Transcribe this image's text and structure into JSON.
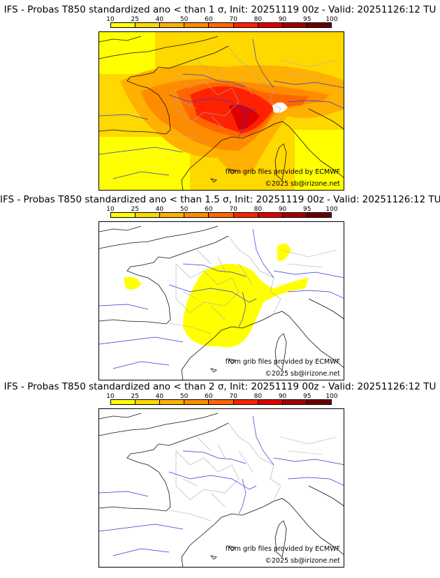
{
  "panels": [
    {
      "title": "IFS - Probas T850  standardized ano < than 1 σ, Init: 20251119 00z - Valid: 20251126:12 TU",
      "fill": "full"
    },
    {
      "title": "IFS - Probas T850  standardized ano < than 1.5 σ, Init: 20251119 00z - Valid: 20251126:12 TU",
      "fill": "partial"
    },
    {
      "title": "IFS - Probas T850  standardized ano < than 2 σ, Init: 20251119 00z - Valid: 20251126:12 TU",
      "fill": "none"
    }
  ],
  "colorbar": {
    "labels": [
      "10",
      "25",
      "40",
      "50",
      "60",
      "70",
      "80",
      "90",
      "95",
      "100"
    ],
    "colors": [
      "#ffff00",
      "#ffd800",
      "#ffb000",
      "#ff8c00",
      "#ff6600",
      "#ff2200",
      "#dd0000",
      "#a00000",
      "#6a0000"
    ]
  },
  "credits": {
    "source": "from grib files provided by ECMWF",
    "copyright": "©2025 sb@irizone.net"
  }
}
